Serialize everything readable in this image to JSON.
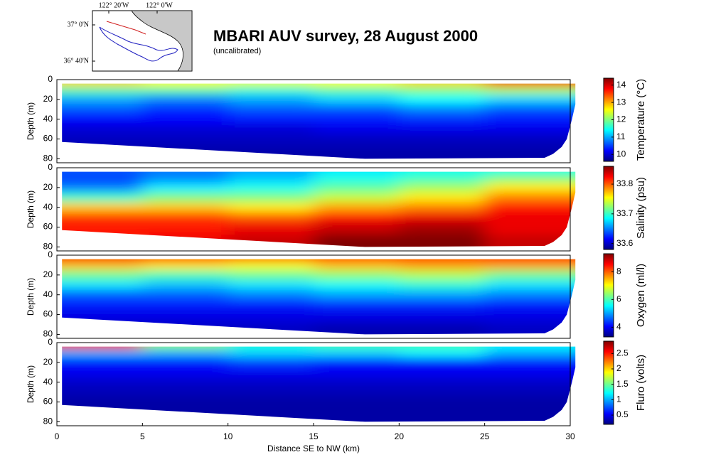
{
  "map": {
    "lon_labels": [
      "122° 20'W",
      "122° 0'W"
    ],
    "lat_labels": [
      "37° 0'N",
      "36° 40'N"
    ]
  },
  "chart_data": [
    {
      "type": "heatmap",
      "title": "MBARI AUV survey, 28 August 2000",
      "subtitle": "(uncalibrated)",
      "ylabel": "Depth (m)",
      "zlabel": "Temperature (°C)",
      "xlim": [
        0,
        30
      ],
      "ylim": [
        0,
        84
      ],
      "yticks": [
        0,
        20,
        40,
        60,
        80
      ],
      "zlim": [
        9.6,
        14.4
      ],
      "zticks": [
        10,
        11,
        12,
        13,
        14
      ],
      "coverage_x": [
        0.3,
        30.3,
        30.3,
        30.1,
        29.8,
        29.5,
        29,
        28.5,
        18,
        0.3
      ],
      "coverage_depth": [
        4,
        4,
        25,
        40,
        60,
        68,
        75,
        79,
        80,
        63
      ],
      "x": [
        2.5,
        7.5,
        12.5,
        17.5,
        22.5,
        27.5
      ],
      "depth": [
        3,
        10,
        20,
        30,
        40,
        50,
        60,
        75
      ],
      "z": [
        [
          12.8,
          12.6,
          12.5,
          12.6,
          12.8,
          13.8
        ],
        [
          11.8,
          11.8,
          11.6,
          11.8,
          12,
          12.2
        ],
        [
          11,
          10.8,
          11,
          11.2,
          11.4,
          11.2
        ],
        [
          10.6,
          10.4,
          10.6,
          10.6,
          10.8,
          10.6
        ],
        [
          10.2,
          10.2,
          10.3,
          10.3,
          10.4,
          10.3
        ],
        [
          10,
          10,
          10,
          10.1,
          10.1,
          10.1
        ],
        [
          9.9,
          9.9,
          9.9,
          9.9,
          9.9,
          9.9
        ],
        [
          9.8,
          9.8,
          9.8,
          9.8,
          9.8,
          9.8
        ]
      ]
    },
    {
      "type": "heatmap",
      "ylabel": "Depth (m)",
      "zlabel": "Salinity (psu)",
      "xlim": [
        0,
        30
      ],
      "ylim": [
        0,
        84
      ],
      "yticks": [
        0,
        20,
        40,
        60,
        80
      ],
      "zlim": [
        33.58,
        33.86
      ],
      "zticks": [
        33.6,
        33.7,
        33.8
      ],
      "coverage_x": [
        0.3,
        30.3,
        30.3,
        30.1,
        29.8,
        29.5,
        29,
        28.5,
        18,
        0.3
      ],
      "coverage_depth": [
        4,
        4,
        25,
        40,
        60,
        68,
        75,
        79,
        80,
        63
      ],
      "x": [
        2.5,
        7.5,
        12.5,
        17.5,
        22.5,
        27.5
      ],
      "depth": [
        3,
        10,
        20,
        30,
        40,
        50,
        60,
        75
      ],
      "z": [
        [
          33.64,
          33.65,
          33.66,
          33.68,
          33.69,
          33.69
        ],
        [
          33.63,
          33.65,
          33.67,
          33.69,
          33.7,
          33.72
        ],
        [
          33.65,
          33.68,
          33.69,
          33.71,
          33.73,
          33.76
        ],
        [
          33.7,
          33.72,
          33.72,
          33.74,
          33.76,
          33.79
        ],
        [
          33.77,
          33.77,
          33.76,
          33.78,
          33.79,
          33.82
        ],
        [
          33.81,
          33.81,
          33.8,
          33.82,
          33.83,
          33.83
        ],
        [
          33.82,
          33.82,
          33.83,
          33.84,
          33.85,
          33.83
        ],
        [
          33.82,
          33.83,
          33.84,
          33.86,
          33.86,
          33.84
        ]
      ]
    },
    {
      "type": "heatmap",
      "ylabel": "Depth (m)",
      "zlabel": "Oxygen (ml/l)",
      "xlim": [
        0,
        30
      ],
      "ylim": [
        0,
        84
      ],
      "yticks": [
        0,
        20,
        40,
        60,
        80
      ],
      "zlim": [
        3.3,
        9.3
      ],
      "zticks": [
        4,
        6,
        8
      ],
      "coverage_x": [
        0.3,
        30.3,
        30.3,
        30.1,
        29.8,
        29.5,
        29,
        28.5,
        18,
        0.3
      ],
      "coverage_depth": [
        4,
        4,
        25,
        40,
        60,
        68,
        75,
        79,
        80,
        63
      ],
      "x": [
        2.5,
        7.5,
        12.5,
        17.5,
        22.5,
        27.5
      ],
      "depth": [
        3,
        10,
        20,
        30,
        40,
        50,
        60,
        75
      ],
      "z": [
        [
          8.6,
          8.2,
          8,
          8.2,
          8.2,
          8.4
        ],
        [
          7.4,
          7.2,
          7,
          7.4,
          7.6,
          7.6
        ],
        [
          6.2,
          6,
          6.2,
          6.4,
          6.6,
          6.2
        ],
        [
          5.4,
          5.2,
          5.4,
          5.6,
          5.8,
          5.4
        ],
        [
          4.6,
          4.6,
          4.8,
          5,
          5,
          4.8
        ],
        [
          4.2,
          4.2,
          4.2,
          4.3,
          4.3,
          4.2
        ],
        [
          3.9,
          3.9,
          3.9,
          3.9,
          3.9,
          3.9
        ],
        [
          3.7,
          3.7,
          3.7,
          3.6,
          3.6,
          3.7
        ]
      ]
    },
    {
      "type": "heatmap",
      "ylabel": "Depth (m)",
      "zlabel": "Fluro (volts)",
      "xlabel": "Distance SE to NW (km)",
      "xlim": [
        0,
        30
      ],
      "xticks": [
        0,
        5,
        10,
        15,
        20,
        25,
        30
      ],
      "ylim": [
        0,
        84
      ],
      "yticks": [
        0,
        20,
        40,
        60,
        80
      ],
      "zlim": [
        0.2,
        2.9
      ],
      "zticks": [
        0.5,
        1,
        1.5,
        2,
        2.5
      ],
      "coverage_x": [
        0.3,
        30.3,
        30.3,
        30.1,
        29.8,
        29.5,
        29,
        28.5,
        18,
        0.3
      ],
      "coverage_depth": [
        4,
        4,
        25,
        40,
        60,
        68,
        75,
        79,
        80,
        63
      ],
      "x": [
        2.5,
        7.5,
        12.5,
        17.5,
        22.5,
        27.5
      ],
      "depth": [
        3,
        10,
        20,
        30,
        40,
        50,
        60,
        75
      ],
      "z": [
        [
          2.4,
          1.6,
          1.3,
          1.4,
          1.4,
          1.2
        ],
        [
          1,
          1,
          1.1,
          1.1,
          1.2,
          1
        ],
        [
          0.6,
          0.6,
          0.7,
          0.6,
          0.6,
          0.6
        ],
        [
          0.5,
          0.5,
          0.5,
          0.5,
          0.5,
          0.5
        ],
        [
          0.4,
          0.4,
          0.4,
          0.4,
          0.4,
          0.4
        ],
        [
          0.35,
          0.35,
          0.35,
          0.35,
          0.35,
          0.35
        ],
        [
          0.3,
          0.3,
          0.3,
          0.3,
          0.3,
          0.3
        ],
        [
          0.3,
          0.3,
          0.3,
          0.3,
          0.3,
          0.3
        ]
      ]
    }
  ]
}
